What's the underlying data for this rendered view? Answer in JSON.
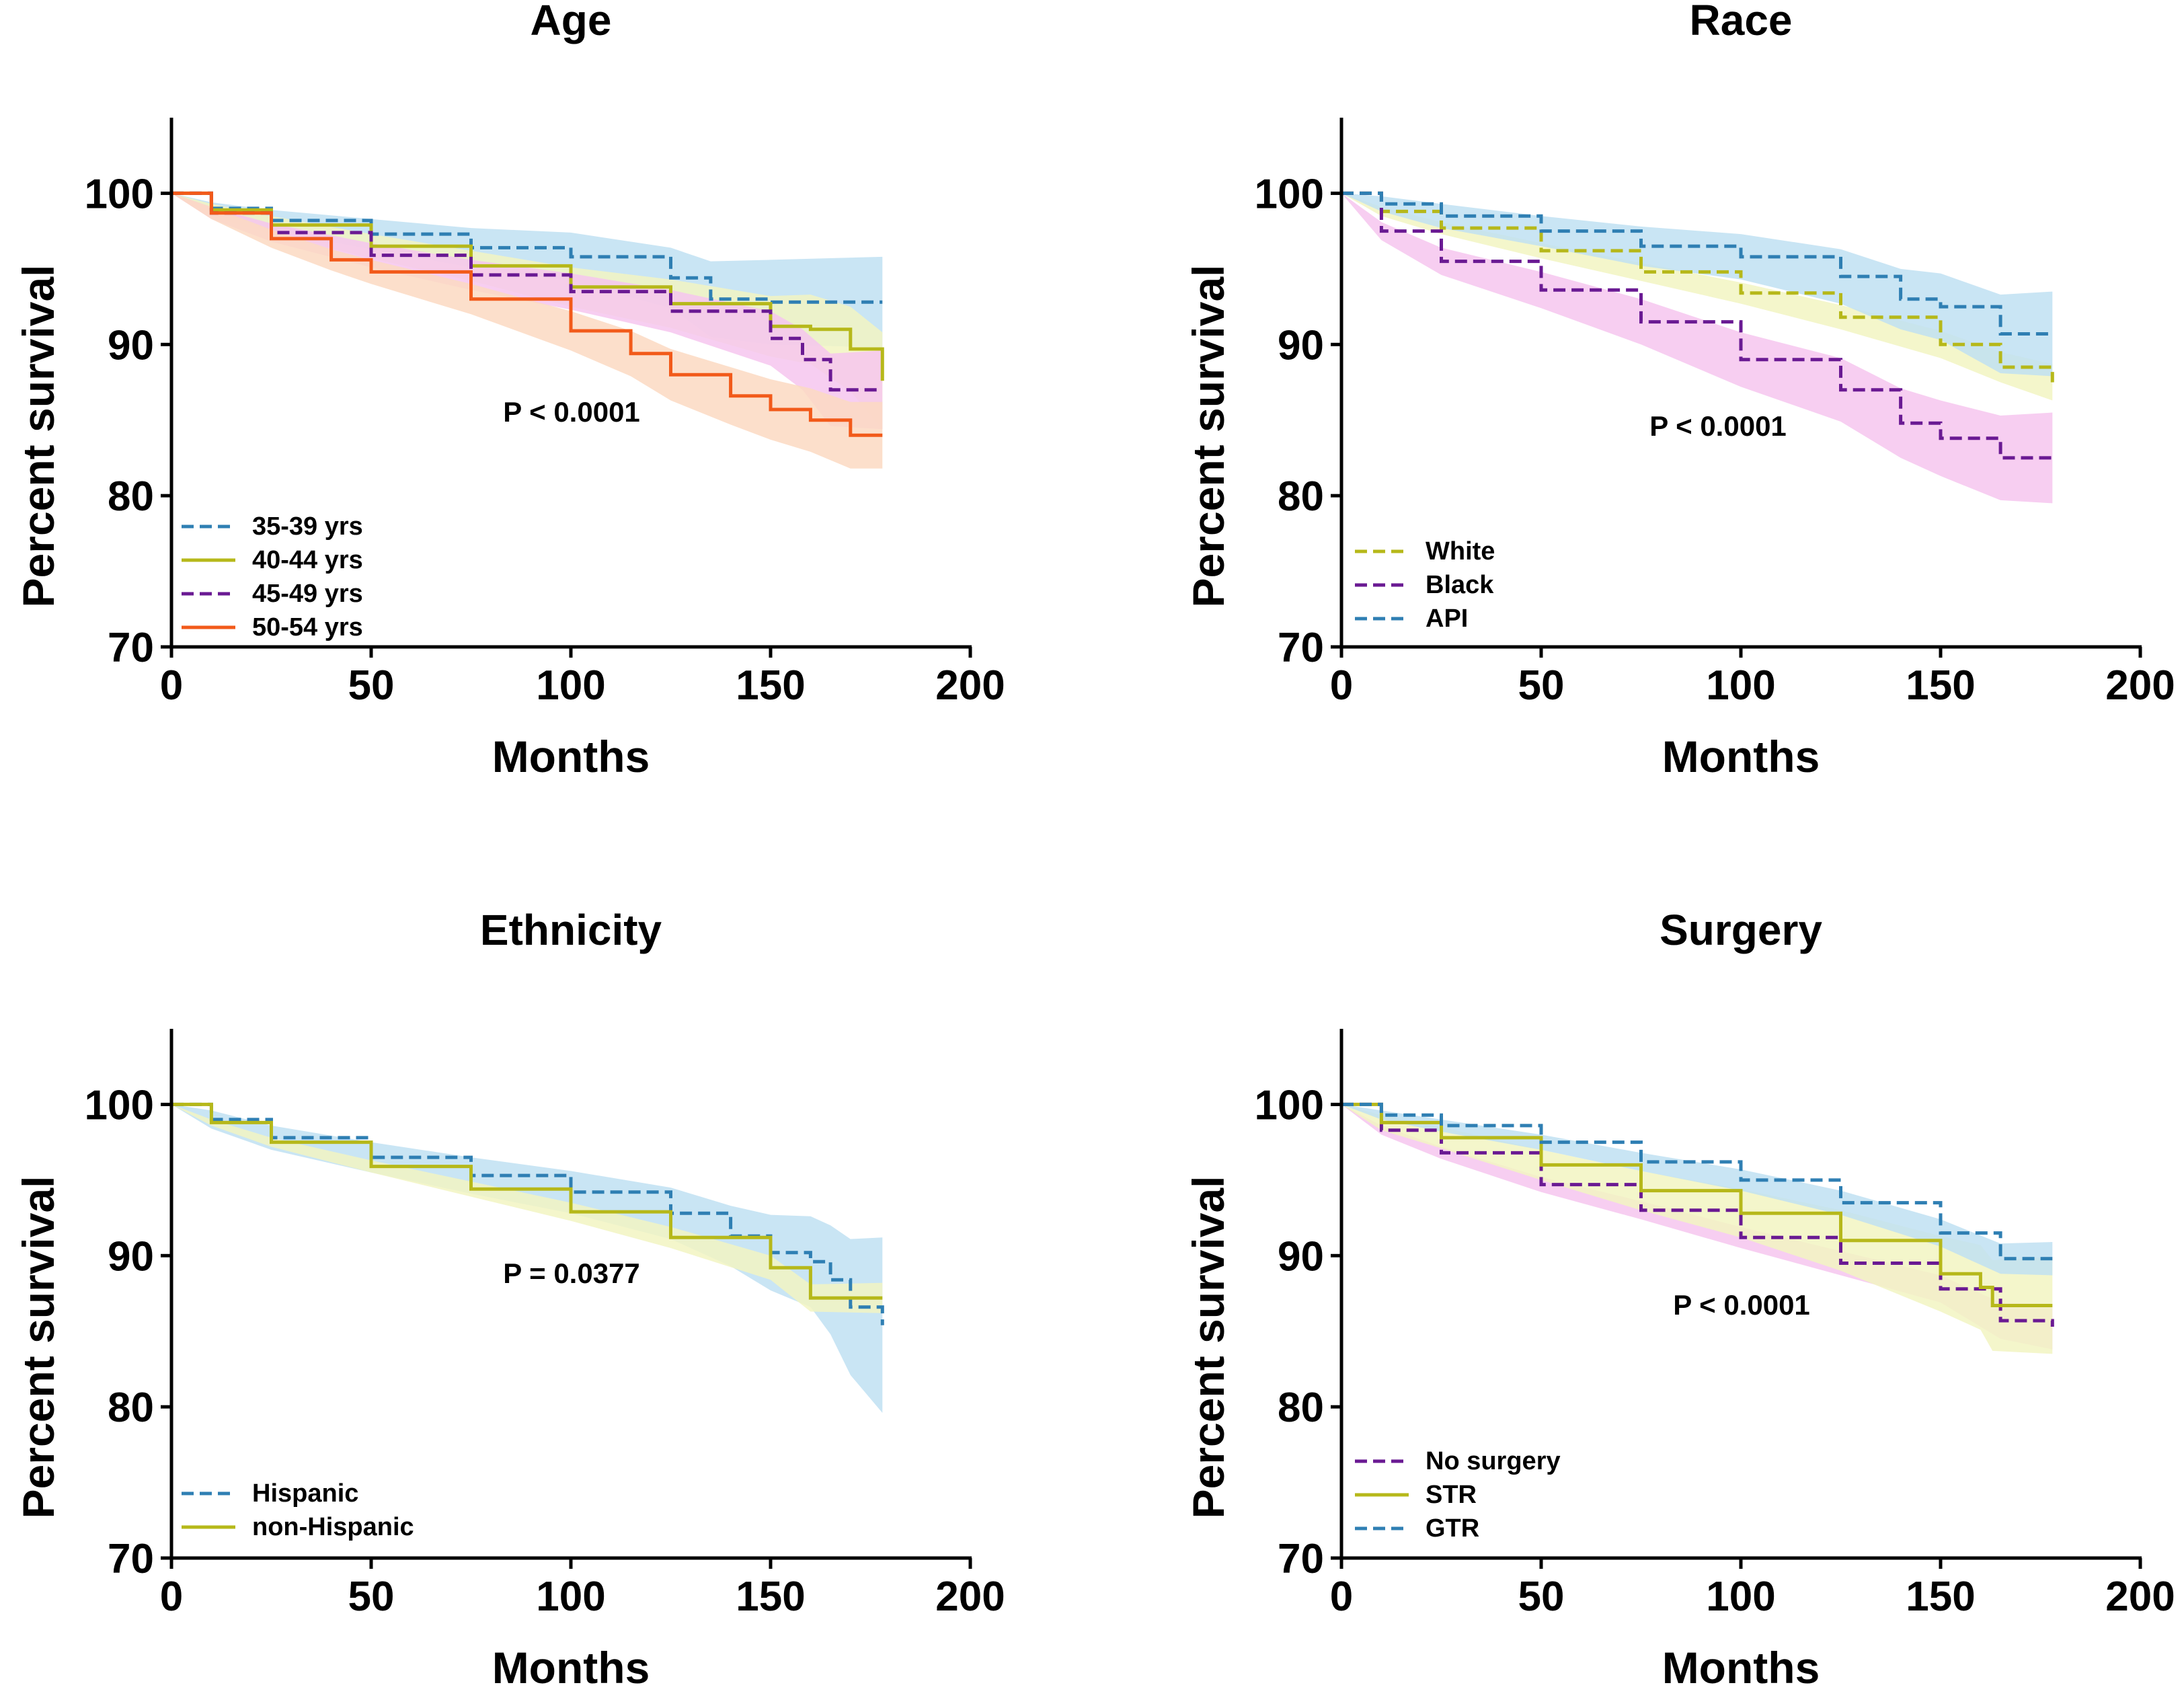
{
  "colors": {
    "blue": "#2f7fb3",
    "olive": "#b6b81a",
    "purple": "#6a1a93",
    "orange": "#f25a1a",
    "blue_band": "#bfe0f2",
    "olive_band": "#f2f5c2",
    "purple_band": "#f6c6ee",
    "orange_band": "#fcd9c2"
  },
  "chart_data": [
    {
      "type": "line",
      "title": "Age",
      "xlabel": "Months",
      "ylabel": "Percent survival",
      "xlim": [
        0,
        200
      ],
      "ylim": [
        70,
        105
      ],
      "xticks": [
        "0",
        "50",
        "100",
        "150",
        "200"
      ],
      "yticks": [
        "70",
        "80",
        "90",
        "100"
      ],
      "pvalue": "P < 0.0001",
      "legend_position": "bottom-left",
      "series": [
        {
          "name": "35-39 yrs",
          "color": "blue",
          "dash": true,
          "x": [
            0,
            10,
            25,
            50,
            75,
            100,
            125,
            135,
            150,
            178
          ],
          "y": [
            100,
            99.0,
            98.2,
            97.3,
            96.4,
            95.8,
            94.4,
            93.0,
            92.8,
            92.8
          ],
          "ci": [
            0,
            0.4,
            0.7,
            1.0,
            1.3,
            1.6,
            2.0,
            2.5,
            2.8,
            3.0
          ]
        },
        {
          "name": "40-44 yrs",
          "color": "olive",
          "dash": false,
          "x": [
            0,
            10,
            25,
            50,
            75,
            100,
            125,
            150,
            160,
            170,
            178
          ],
          "y": [
            100,
            98.9,
            97.9,
            96.5,
            95.2,
            93.8,
            92.7,
            91.2,
            91.0,
            89.7,
            87.6
          ],
          "ci": [
            0,
            0.4,
            0.6,
            0.8,
            1.0,
            1.3,
            1.6,
            2.0,
            2.3,
            2.8,
            3.2
          ]
        },
        {
          "name": "45-49 yrs",
          "color": "purple",
          "dash": true,
          "x": [
            0,
            10,
            25,
            50,
            75,
            100,
            125,
            150,
            158,
            165,
            178
          ],
          "y": [
            100,
            98.7,
            97.4,
            95.9,
            94.6,
            93.5,
            92.2,
            90.4,
            89.0,
            87.0,
            87.0
          ],
          "ci": [
            0,
            0.4,
            0.6,
            0.8,
            1.0,
            1.2,
            1.4,
            1.8,
            2.0,
            2.4,
            2.6
          ]
        },
        {
          "name": "50-54 yrs",
          "color": "orange",
          "dash": false,
          "x": [
            0,
            10,
            25,
            40,
            50,
            75,
            100,
            115,
            125,
            140,
            150,
            160,
            170,
            178
          ],
          "y": [
            100,
            98.7,
            97.0,
            95.6,
            94.8,
            93.0,
            90.9,
            89.4,
            88.0,
            86.6,
            85.7,
            85.0,
            84.0,
            84.0
          ],
          "ci": [
            0,
            0.4,
            0.6,
            0.7,
            0.8,
            1.0,
            1.3,
            1.5,
            1.7,
            1.9,
            2.0,
            2.1,
            2.2,
            2.2
          ]
        }
      ]
    },
    {
      "type": "line",
      "title": "Race",
      "xlabel": "Months",
      "ylabel": "Percent survival",
      "xlim": [
        0,
        200
      ],
      "ylim": [
        70,
        105
      ],
      "xticks": [
        "0",
        "50",
        "100",
        "150",
        "200"
      ],
      "yticks": [
        "70",
        "80",
        "90",
        "100"
      ],
      "pvalue": "P < 0.0001",
      "legend_position": "bottom-left",
      "series": [
        {
          "name": "White",
          "color": "olive",
          "dash": true,
          "x": [
            0,
            10,
            25,
            50,
            75,
            100,
            125,
            150,
            165,
            178
          ],
          "y": [
            100,
            98.8,
            97.7,
            96.2,
            94.8,
            93.4,
            91.8,
            90.0,
            88.5,
            87.5
          ],
          "ci": [
            0,
            0.3,
            0.4,
            0.5,
            0.6,
            0.7,
            0.8,
            0.9,
            1.0,
            1.2
          ]
        },
        {
          "name": "Black",
          "color": "purple",
          "dash": true,
          "x": [
            0,
            10,
            25,
            50,
            75,
            100,
            125,
            140,
            150,
            165,
            178
          ],
          "y": [
            100,
            97.5,
            95.5,
            93.6,
            91.5,
            89.0,
            87.0,
            84.8,
            83.8,
            82.5,
            82.5
          ],
          "ci": [
            0,
            0.6,
            0.9,
            1.2,
            1.5,
            1.8,
            2.1,
            2.3,
            2.5,
            2.8,
            3.0
          ]
        },
        {
          "name": "API",
          "color": "blue",
          "dash": true,
          "x": [
            0,
            10,
            25,
            50,
            75,
            100,
            125,
            140,
            150,
            165,
            178
          ],
          "y": [
            100,
            99.3,
            98.5,
            97.5,
            96.5,
            95.8,
            94.5,
            93.0,
            92.5,
            90.7,
            90.7
          ],
          "ci": [
            0,
            0.5,
            0.8,
            1.0,
            1.3,
            1.5,
            1.8,
            2.0,
            2.2,
            2.6,
            2.8
          ]
        }
      ]
    },
    {
      "type": "line",
      "title": "Ethnicity",
      "xlabel": "Months",
      "ylabel": "Percent survival",
      "xlim": [
        0,
        200
      ],
      "ylim": [
        70,
        105
      ],
      "xticks": [
        "0",
        "50",
        "100",
        "150",
        "200"
      ],
      "yticks": [
        "70",
        "80",
        "90",
        "100"
      ],
      "pvalue": "P = 0.0377",
      "legend_position": "bottom-left",
      "series": [
        {
          "name": "Hispanic",
          "color": "blue",
          "dash": true,
          "x": [
            0,
            10,
            25,
            50,
            75,
            100,
            125,
            140,
            150,
            160,
            165,
            170,
            178
          ],
          "y": [
            100,
            99.0,
            97.8,
            96.5,
            95.3,
            94.2,
            92.8,
            91.3,
            90.2,
            89.6,
            88.4,
            86.6,
            85.4
          ],
          "ci": [
            0,
            0.6,
            0.8,
            1.0,
            1.2,
            1.4,
            1.7,
            2.0,
            2.5,
            3.0,
            3.6,
            4.5,
            5.8
          ]
        },
        {
          "name": "non-Hispanic",
          "color": "olive",
          "dash": false,
          "x": [
            0,
            10,
            25,
            50,
            75,
            100,
            125,
            150,
            160,
            178
          ],
          "y": [
            100,
            98.8,
            97.5,
            95.9,
            94.4,
            92.9,
            91.2,
            89.2,
            87.2,
            87.2
          ],
          "ci": [
            0,
            0.2,
            0.3,
            0.4,
            0.5,
            0.6,
            0.7,
            0.8,
            0.9,
            1.0
          ]
        }
      ]
    },
    {
      "type": "line",
      "title": "Surgery",
      "xlabel": "Months",
      "ylabel": "Percent survival",
      "xlim": [
        0,
        200
      ],
      "ylim": [
        70,
        105
      ],
      "xticks": [
        "0",
        "50",
        "100",
        "150",
        "200"
      ],
      "yticks": [
        "70",
        "80",
        "90",
        "100"
      ],
      "pvalue": "P < 0.0001",
      "legend_position": "bottom-left",
      "series": [
        {
          "name": "No surgery",
          "color": "purple",
          "dash": true,
          "x": [
            0,
            10,
            25,
            50,
            75,
            100,
            125,
            150,
            165,
            178
          ],
          "y": [
            100,
            98.3,
            96.8,
            94.7,
            93.0,
            91.2,
            89.5,
            87.8,
            85.7,
            85.3
          ],
          "ci": [
            0,
            0.3,
            0.4,
            0.5,
            0.6,
            0.7,
            0.8,
            0.9,
            1.2,
            1.5
          ]
        },
        {
          "name": "STR",
          "color": "olive",
          "dash": false,
          "x": [
            0,
            10,
            25,
            50,
            75,
            100,
            125,
            150,
            160,
            163,
            178
          ],
          "y": [
            100,
            98.8,
            97.8,
            96.0,
            94.3,
            92.8,
            91.0,
            88.8,
            87.9,
            86.7,
            86.7
          ],
          "ci": [
            0,
            0.5,
            0.7,
            1.0,
            1.3,
            1.6,
            2.0,
            2.5,
            2.8,
            3.0,
            3.2
          ]
        },
        {
          "name": "GTR",
          "color": "blue",
          "dash": true,
          "x": [
            0,
            10,
            25,
            50,
            75,
            100,
            125,
            150,
            165,
            178
          ],
          "y": [
            100,
            99.3,
            98.6,
            97.5,
            96.2,
            95.0,
            93.5,
            91.5,
            89.8,
            89.8
          ],
          "ci": [
            0,
            0.3,
            0.4,
            0.5,
            0.6,
            0.7,
            0.8,
            0.9,
            1.0,
            1.1
          ]
        }
      ]
    }
  ]
}
